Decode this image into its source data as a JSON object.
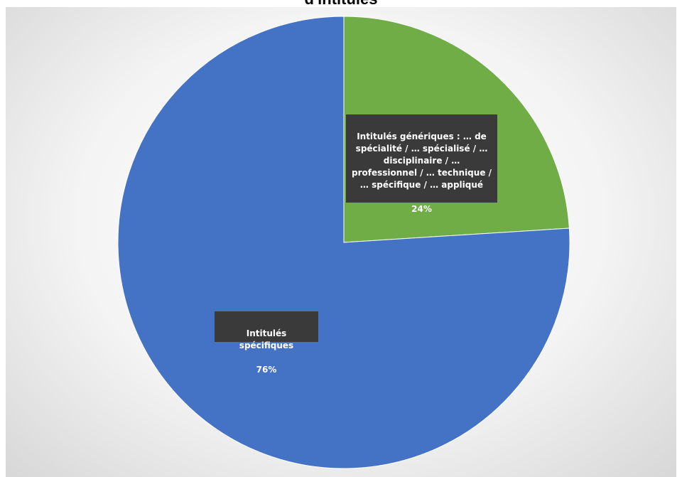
{
  "title": "d'intitulés",
  "chart_data": {
    "type": "pie",
    "title": "d'intitulés",
    "slices": [
      {
        "label": "Intitulés génériques : … de spécialité / … spécialisé / … disciplinaire / … professionnel / … technique / … spécifique / … appliqué",
        "value": 24,
        "value_label": "24%",
        "color": "#70ad47"
      },
      {
        "label": "Intitulés spécifiques",
        "value": 76,
        "value_label": "76%",
        "color": "#4472c4"
      }
    ],
    "start_angle_deg": 0,
    "direction": "clockwise",
    "data_labels": true,
    "legend": false
  }
}
